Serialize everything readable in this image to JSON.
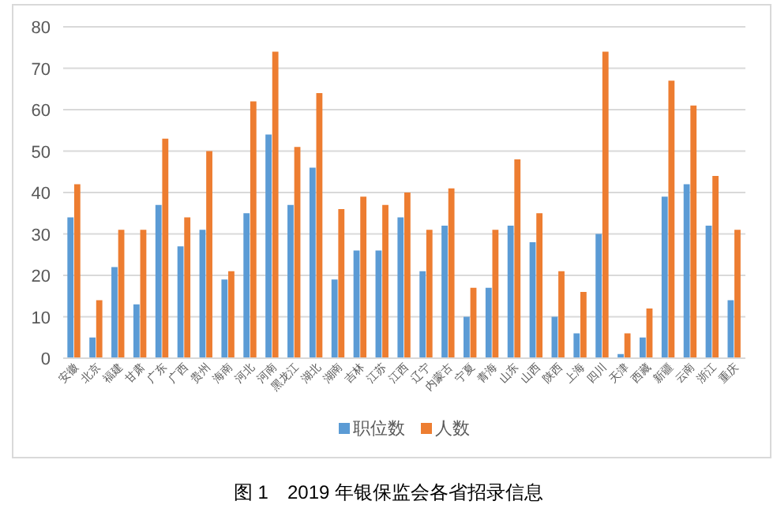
{
  "chart_data": {
    "type": "bar",
    "categories": [
      "安徽",
      "北京",
      "福建",
      "甘肃",
      "广东",
      "广西",
      "贵州",
      "海南",
      "河北",
      "河南",
      "黑龙江",
      "湖北",
      "湖南",
      "吉林",
      "江苏",
      "江西",
      "辽宁",
      "内蒙古",
      "宁夏",
      "青海",
      "山东",
      "山西",
      "陕西",
      "上海",
      "四川",
      "天津",
      "西藏",
      "新疆",
      "云南",
      "浙江",
      "重庆"
    ],
    "series": [
      {
        "name": "职位数",
        "color": "#5b9bd5",
        "values": [
          34,
          5,
          22,
          13,
          37,
          27,
          31,
          19,
          35,
          54,
          37,
          46,
          19,
          26,
          26,
          34,
          21,
          32,
          10,
          17,
          32,
          28,
          10,
          6,
          30,
          1,
          5,
          39,
          42,
          32,
          14
        ]
      },
      {
        "name": "人数",
        "color": "#ed7d31",
        "values": [
          42,
          14,
          31,
          31,
          53,
          34,
          50,
          21,
          62,
          74,
          51,
          64,
          36,
          39,
          37,
          40,
          31,
          41,
          17,
          31,
          48,
          35,
          21,
          16,
          74,
          6,
          12,
          67,
          61,
          44,
          31
        ]
      }
    ],
    "ylim": [
      0,
      80
    ],
    "yticks": [
      0,
      10,
      20,
      30,
      40,
      50,
      60,
      70,
      80
    ],
    "grid": "y",
    "legend": "bottom",
    "annotations": [
      "图 1　2019 年银保监会各省招录信息"
    ]
  }
}
